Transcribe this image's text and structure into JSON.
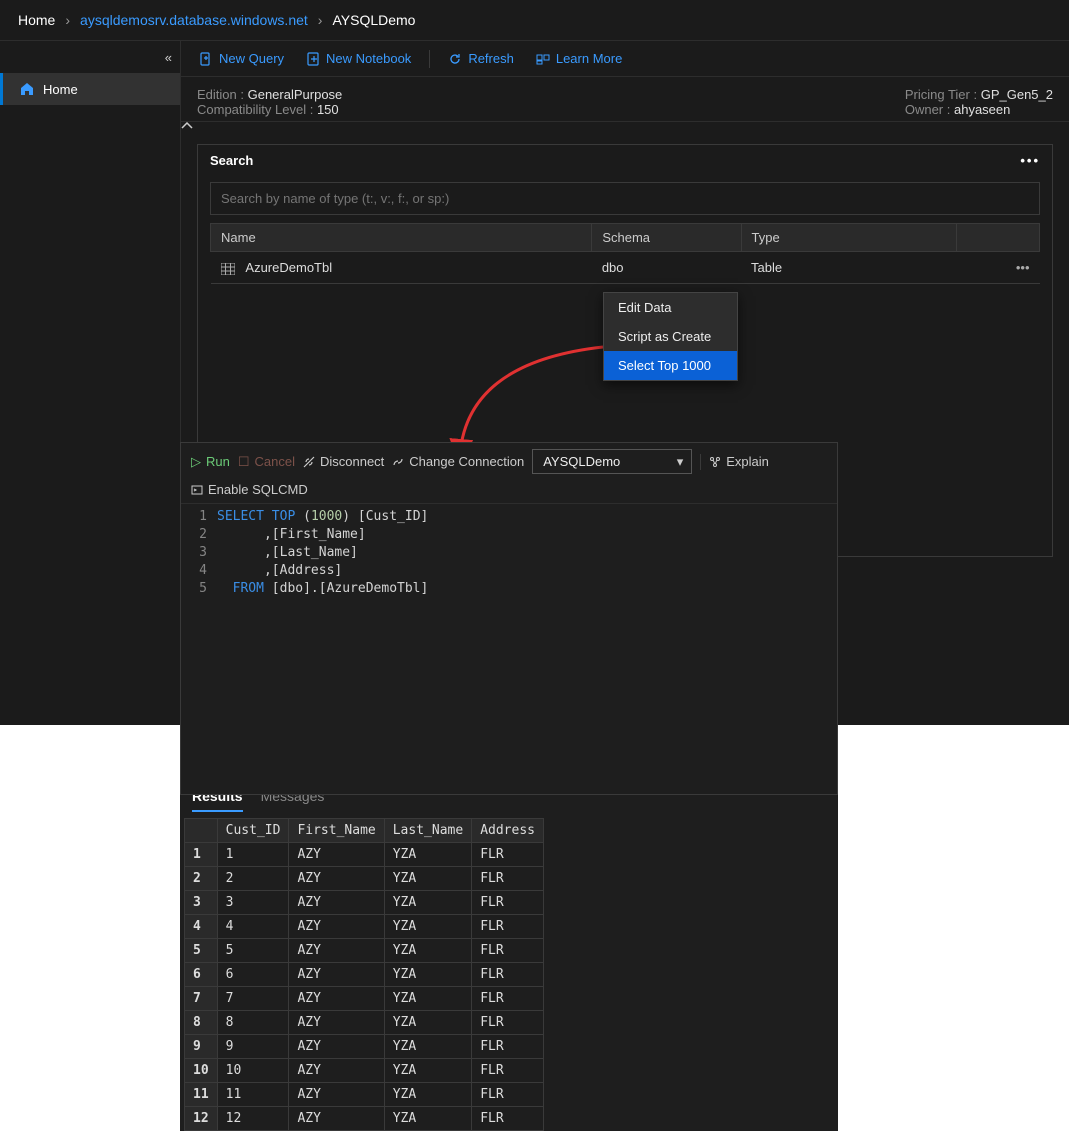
{
  "breadcrumb": {
    "home": "Home",
    "server": "aysqldemosrv.database.windows.net",
    "db": "AYSQLDemo"
  },
  "sidebar": {
    "home": "Home"
  },
  "toolbar": {
    "new_query": "New Query",
    "new_notebook": "New Notebook",
    "refresh": "Refresh",
    "learn_more": "Learn More"
  },
  "info": {
    "edition_label": "Edition  :",
    "edition_value": "GeneralPurpose",
    "compat_label": "Compatibility Level  :",
    "compat_value": "150",
    "tier_label": "Pricing Tier  :",
    "tier_value": "GP_Gen5_2",
    "owner_label": "Owner  :",
    "owner_value": "ahyaseen"
  },
  "search": {
    "title": "Search",
    "placeholder": "Search by name of type (t:, v:, f:, or sp:)",
    "columns": {
      "name": "Name",
      "schema": "Schema",
      "type": "Type"
    },
    "row": {
      "name": "AzureDemoTbl",
      "schema": "dbo",
      "type": "Table",
      "actions": "•••"
    }
  },
  "context_menu": {
    "edit": "Edit Data",
    "script": "Script as Create",
    "select": "Select Top 1000"
  },
  "qbar": {
    "run": "Run",
    "cancel": "Cancel",
    "disconnect": "Disconnect",
    "change_conn": "Change Connection",
    "db": "AYSQLDemo",
    "explain": "Explain",
    "sqlcmd": "Enable SQLCMD"
  },
  "editor": {
    "lines": [
      "1",
      "2",
      "3",
      "4",
      "5"
    ],
    "code": {
      "l1a": "SELECT",
      "l1b": " TOP",
      "l1c": " (",
      "l1d": "1000",
      "l1e": ") [Cust_ID]",
      "l2": "      ,[First_Name]",
      "l3": "      ,[Last_Name]",
      "l4": "      ,[Address]",
      "l5a": "  FROM",
      "l5b": " [dbo].[AzureDemoTbl]"
    }
  },
  "results": {
    "tab_results": "Results",
    "tab_messages": "Messages",
    "headers": [
      "Cust_ID",
      "First_Name",
      "Last_Name",
      "Address"
    ],
    "rows": [
      [
        "1",
        "1",
        "AZY",
        "YZA",
        "FLR"
      ],
      [
        "2",
        "2",
        "AZY",
        "YZA",
        "FLR"
      ],
      [
        "3",
        "3",
        "AZY",
        "YZA",
        "FLR"
      ],
      [
        "4",
        "4",
        "AZY",
        "YZA",
        "FLR"
      ],
      [
        "5",
        "5",
        "AZY",
        "YZA",
        "FLR"
      ],
      [
        "6",
        "6",
        "AZY",
        "YZA",
        "FLR"
      ],
      [
        "7",
        "7",
        "AZY",
        "YZA",
        "FLR"
      ],
      [
        "8",
        "8",
        "AZY",
        "YZA",
        "FLR"
      ],
      [
        "9",
        "9",
        "AZY",
        "YZA",
        "FLR"
      ],
      [
        "10",
        "10",
        "AZY",
        "YZA",
        "FLR"
      ],
      [
        "11",
        "11",
        "AZY",
        "YZA",
        "FLR"
      ],
      [
        "12",
        "12",
        "AZY",
        "YZA",
        "FLR"
      ]
    ]
  },
  "colors": {
    "accent": "#3a9bff",
    "run": "#6bcb77",
    "arrow": "#e03131",
    "selected": "#0b61d6",
    "background": "#1b1b1b",
    "panel_border": "#3a3a3a"
  }
}
